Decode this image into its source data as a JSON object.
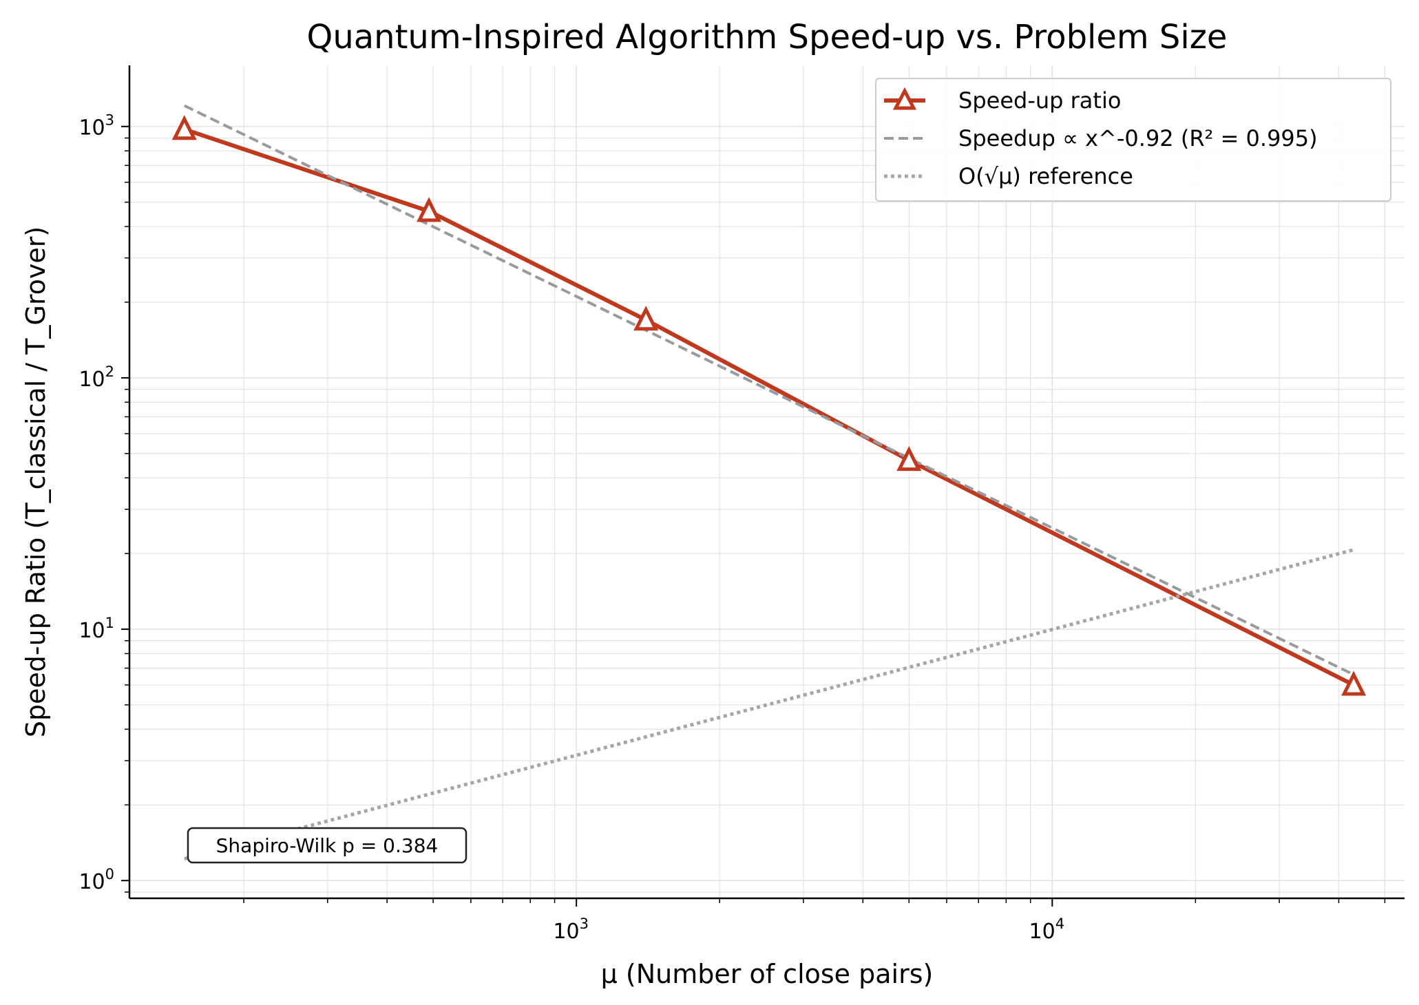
{
  "chart_data": {
    "type": "line",
    "title": "Quantum-Inspired Algorithm Speed-up vs. Problem Size",
    "xlabel": "μ (Number of close pairs)",
    "ylabel": "Speed-up Ratio (T_classical / T_Grover)",
    "xscale": "log",
    "yscale": "log",
    "xlim": [
      115,
      55000
    ],
    "ylim": [
      0.85,
      1750
    ],
    "grid": true,
    "legend_position": "top-right",
    "x_ticks": [
      {
        "value": 1000,
        "base": "10",
        "exp": "3"
      },
      {
        "value": 10000,
        "base": "10",
        "exp": "4"
      }
    ],
    "y_ticks": [
      {
        "value": 1,
        "base": "10",
        "exp": "0"
      },
      {
        "value": 10,
        "base": "10",
        "exp": "1"
      },
      {
        "value": 100,
        "base": "10",
        "exp": "2"
      },
      {
        "value": 1000,
        "base": "10",
        "exp": "3"
      }
    ],
    "series": [
      {
        "name": "Speed-up ratio",
        "style": "solid-triangle-markers",
        "color": "#c0391f",
        "x": [
          150,
          490,
          1400,
          5000,
          43000
        ],
        "y": [
          975,
          460,
          170,
          47,
          6
        ]
      },
      {
        "name": "Speedup ∝ x^-0.92 (R² = 0.995)",
        "style": "dashed",
        "color": "#979ba0",
        "x": [
          150,
          43000
        ],
        "y": [
          1210,
          6.6
        ]
      },
      {
        "name": "O(√μ) reference",
        "style": "dotted",
        "color": "#a6a6a6",
        "x": [
          150,
          43000
        ],
        "y": [
          1.22,
          20.7
        ]
      }
    ],
    "annotation": "Shapiro-Wilk p = 0.384"
  },
  "colors": {
    "speedup": "#c0391f",
    "fit": "#979ba0",
    "reference": "#a6a6a6",
    "grid": "#e3e3e3"
  }
}
